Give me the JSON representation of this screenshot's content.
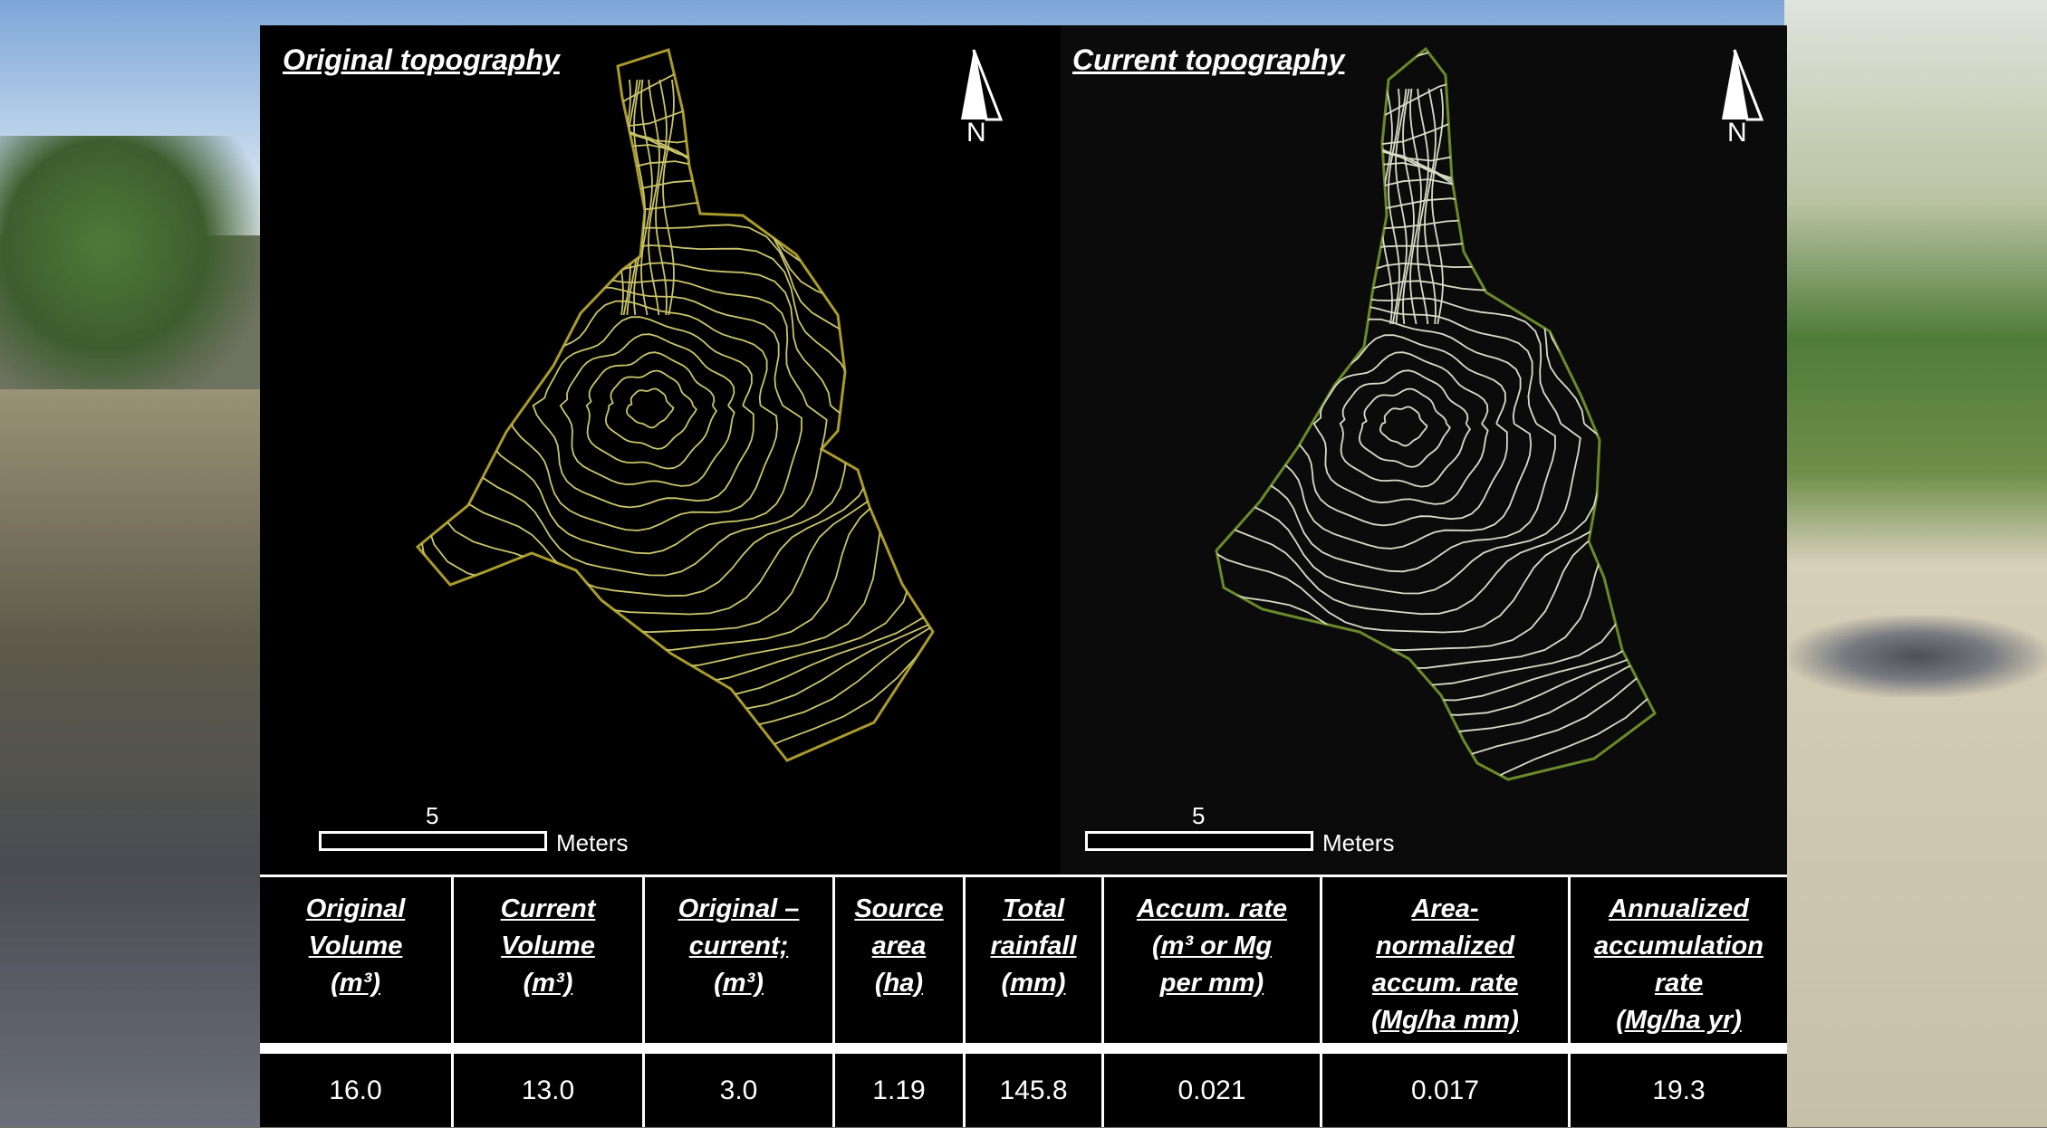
{
  "maps": [
    {
      "title": "Original topography",
      "north_label": "N",
      "scale_value": "5",
      "scale_unit": "Meters",
      "contour_color": "#c9c46a",
      "outline_color": "#a99a2a"
    },
    {
      "title": "Current topography",
      "north_label": "N",
      "scale_value": "5",
      "scale_unit": "Meters",
      "contour_color": "#d9dcc6",
      "outline_color": "#6a8a2a"
    }
  ],
  "table": {
    "columns": [
      {
        "lines": [
          "Original",
          "Volume",
          "(m³)"
        ],
        "value": "16.0"
      },
      {
        "lines": [
          "Current",
          "Volume",
          "(m³)"
        ],
        "value": "13.0"
      },
      {
        "lines": [
          "Original –",
          "current;",
          "(m³)"
        ],
        "value": "3.0"
      },
      {
        "lines": [
          "Source",
          "area",
          "(ha)"
        ],
        "value": "1.19"
      },
      {
        "lines": [
          "Total",
          "rainfall",
          "(mm)"
        ],
        "value": "145.8"
      },
      {
        "lines": [
          "Accum. rate",
          "(m³ or Mg",
          "per mm)"
        ],
        "value": "0.021"
      },
      {
        "lines": [
          "Area-",
          "normalized",
          "accum. rate",
          "(Mg/ha mm)"
        ],
        "value": "0.017"
      },
      {
        "lines": [
          "Annualized",
          "accumulation",
          "rate",
          "(Mg/ha yr)"
        ],
        "value": "19.3"
      }
    ]
  }
}
